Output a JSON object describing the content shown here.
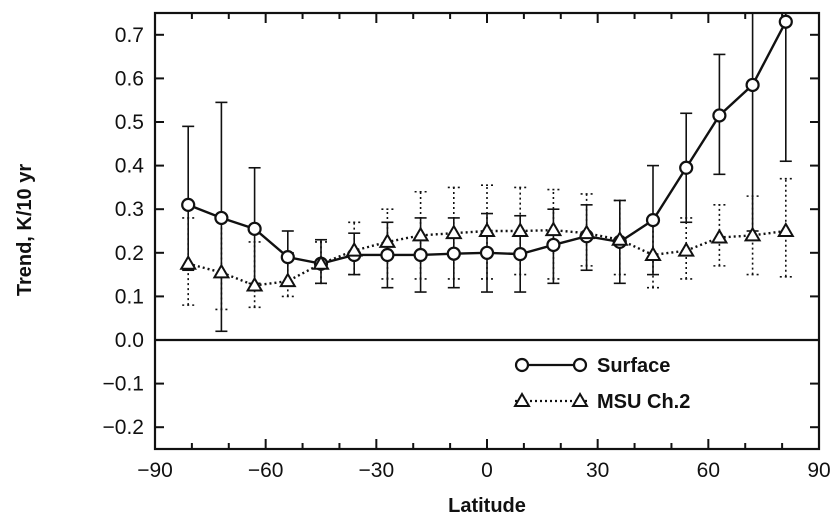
{
  "chart_data": {
    "type": "line",
    "title": "",
    "xlabel": "Latitude",
    "ylabel": "Trend, K/10 yr",
    "xlim": [
      -90,
      90
    ],
    "ylim": [
      -0.25,
      0.75
    ],
    "xticks": [
      -90,
      -60,
      -30,
      0,
      30,
      60,
      90
    ],
    "xtick_labels": [
      "−90",
      "−60",
      "−30",
      "0",
      "30",
      "60",
      "90"
    ],
    "yticks": [
      -0.2,
      -0.1,
      0.0,
      0.1,
      0.2,
      0.3,
      0.4,
      0.5,
      0.6,
      0.7
    ],
    "ytick_labels": [
      "−0.2",
      "−0.1",
      "0.0",
      "0.1",
      "0.2",
      "0.3",
      "0.4",
      "0.5",
      "0.6",
      "0.7"
    ],
    "zero_line": true,
    "legend_position": "bottom-right",
    "x": [
      -81,
      -72,
      -63,
      -54,
      -45,
      -36,
      -27,
      -18,
      -9,
      0,
      9,
      18,
      27,
      36,
      45,
      54,
      63,
      72,
      81
    ],
    "series": [
      {
        "name": "Surface",
        "marker": "circle",
        "line_style": "solid",
        "values": [
          0.31,
          0.28,
          0.255,
          0.19,
          0.175,
          0.195,
          0.195,
          0.195,
          0.198,
          0.2,
          0.197,
          0.218,
          0.238,
          0.225,
          0.275,
          0.395,
          0.515,
          0.585,
          0.73
        ],
        "error_low": [
          0.16,
          0.02,
          0.13,
          0.13,
          0.13,
          0.15,
          0.12,
          0.11,
          0.12,
          0.11,
          0.11,
          0.13,
          0.16,
          0.13,
          0.15,
          0.27,
          0.38,
          0.25,
          0.41
        ],
        "error_high": [
          0.49,
          0.545,
          0.395,
          0.25,
          0.23,
          0.245,
          0.27,
          0.28,
          0.28,
          0.29,
          0.285,
          0.3,
          0.31,
          0.32,
          0.4,
          0.52,
          0.655,
          0.75,
          0.75
        ]
      },
      {
        "name": "MSU Ch.2",
        "marker": "triangle",
        "line_style": "dotted",
        "values": [
          0.175,
          0.155,
          0.125,
          0.135,
          0.175,
          0.205,
          0.225,
          0.24,
          0.245,
          0.25,
          0.25,
          0.252,
          0.245,
          0.23,
          0.195,
          0.205,
          0.235,
          0.24,
          0.25
        ],
        "error_low": [
          0.08,
          0.07,
          0.075,
          0.1,
          0.13,
          0.15,
          0.14,
          0.14,
          0.14,
          0.14,
          0.15,
          0.14,
          0.17,
          0.15,
          0.12,
          0.14,
          0.17,
          0.15,
          0.145
        ],
        "error_high": [
          0.28,
          0.285,
          0.225,
          0.2,
          0.225,
          0.27,
          0.3,
          0.34,
          0.35,
          0.355,
          0.35,
          0.345,
          0.335,
          0.32,
          0.27,
          0.28,
          0.31,
          0.33,
          0.37
        ]
      }
    ]
  }
}
